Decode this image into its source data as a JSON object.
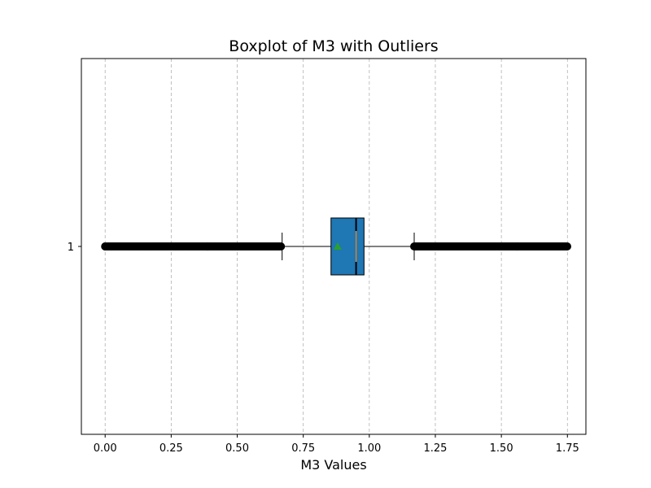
{
  "chart_data": {
    "type": "boxplot",
    "orientation": "horizontal",
    "title": "Boxplot of M3 with Outliers",
    "xlabel": "M3 Values",
    "ylabel": "",
    "xlim": [
      -0.09,
      1.82
    ],
    "x_ticks": [
      0.0,
      0.25,
      0.5,
      0.75,
      1.0,
      1.25,
      1.5,
      1.75
    ],
    "x_tick_labels": [
      "0.00",
      "0.25",
      "0.50",
      "0.75",
      "1.00",
      "1.25",
      "1.50",
      "1.75"
    ],
    "y_tick_labels": [
      "1"
    ],
    "grid": "x-axis dashed",
    "notched": true,
    "box": {
      "category": "1",
      "whisker_low": 0.67,
      "q1": 0.855,
      "median": 0.95,
      "q3": 0.98,
      "whisker_high": 1.17,
      "mean": 0.88,
      "notch_low": 0.95,
      "notch_high": 0.95,
      "outliers_low_range": [
        0.0,
        0.67
      ],
      "outliers_high_range": [
        1.17,
        1.75
      ]
    },
    "colors": {
      "box_fill": "#1f77b4",
      "median": "#ff7f0e",
      "mean_marker": "#2ca02c",
      "outlier": "#000000",
      "grid": "#b0b0b0"
    }
  }
}
